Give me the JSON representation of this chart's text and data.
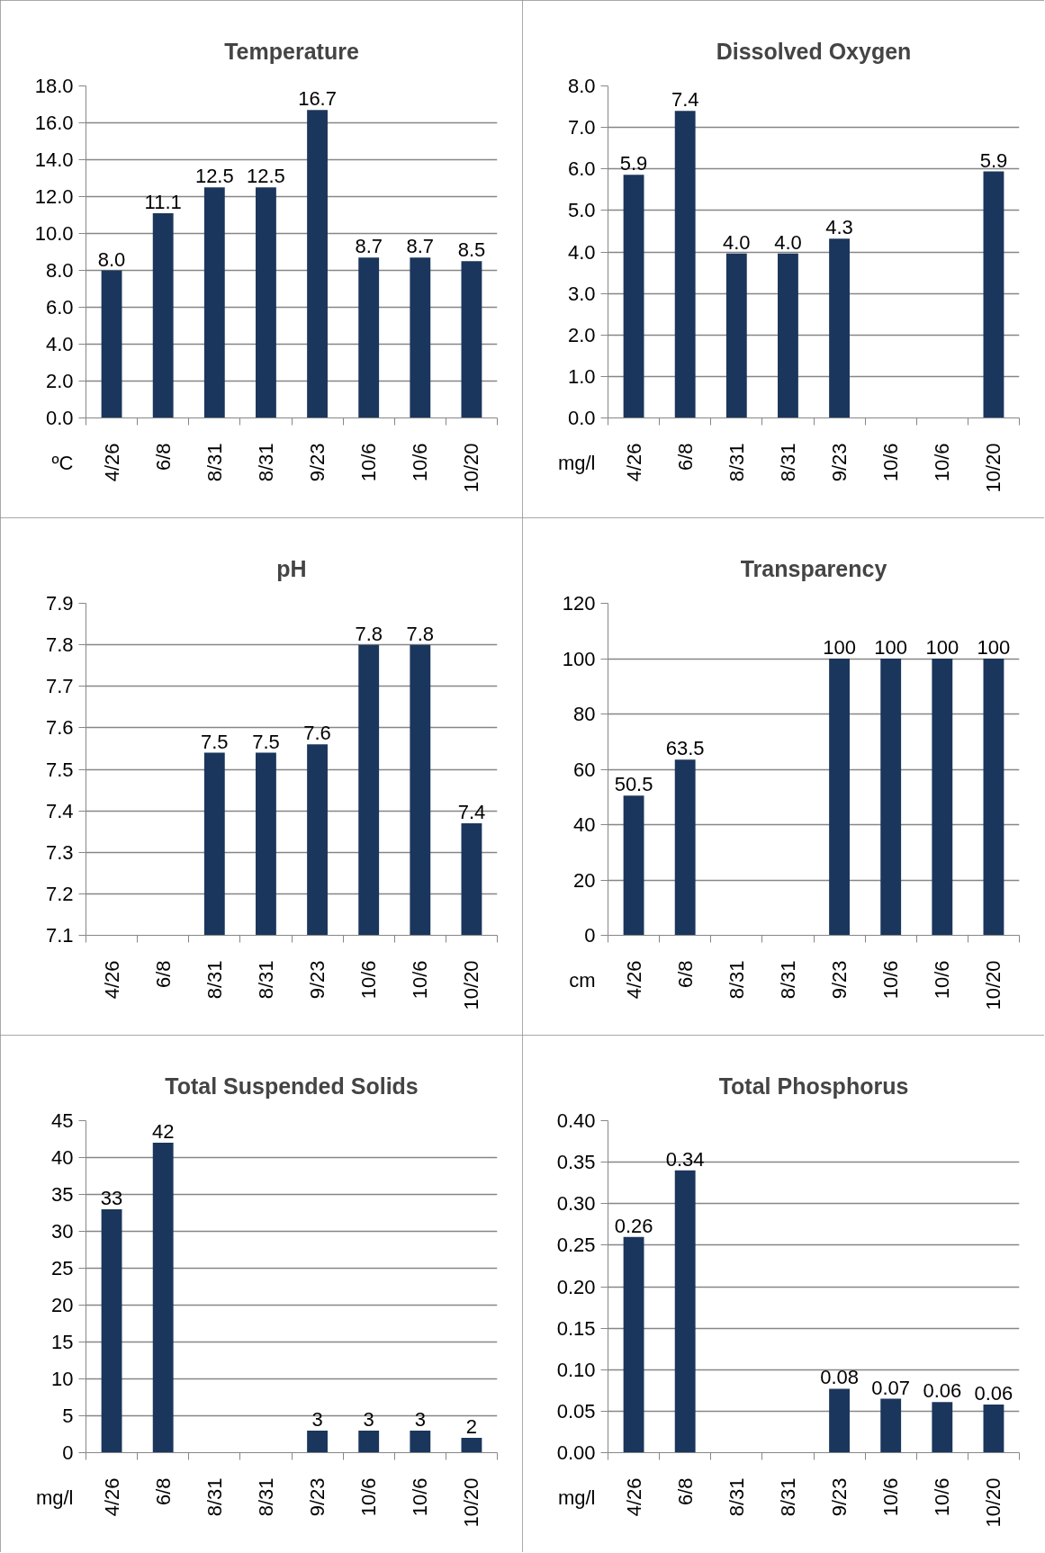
{
  "chart_data": [
    {
      "type": "bar",
      "title": "Temperature",
      "ylabel": "ºC",
      "categories": [
        "4/26",
        "6/8",
        "8/31",
        "8/31",
        "9/23",
        "10/6",
        "10/6",
        "10/20"
      ],
      "values": [
        8.0,
        11.1,
        12.5,
        12.5,
        16.7,
        8.7,
        8.7,
        8.5
      ],
      "value_labels": [
        "8.0",
        "11.1",
        "12.5",
        "12.5",
        "16.7",
        "8.7",
        "8.7",
        "8.5"
      ],
      "color": "#1b365d",
      "ylim": [
        0,
        18
      ],
      "yticks": [
        {
          "value": 0,
          "label": "0.0"
        },
        {
          "value": 2,
          "label": "2.0"
        },
        {
          "value": 4,
          "label": "4.0"
        },
        {
          "value": 6,
          "label": "6.0"
        },
        {
          "value": 8,
          "label": "8.0"
        },
        {
          "value": 10,
          "label": "10.0"
        },
        {
          "value": 12,
          "label": "12.0"
        },
        {
          "value": 14,
          "label": "14.0"
        },
        {
          "value": 16,
          "label": "16.0"
        },
        {
          "value": 18,
          "label": "18.0"
        }
      ],
      "grid": "y"
    },
    {
      "type": "bar",
      "title": "Dissolved Oxygen",
      "ylabel": "mg/l",
      "categories": [
        "4/26",
        "6/8",
        "8/31",
        "8/31",
        "9/23",
        "10/6",
        "10/6",
        "10/20"
      ],
      "values": [
        5.86,
        7.4,
        3.96,
        3.96,
        4.32,
        null,
        null,
        5.94
      ],
      "value_labels": [
        "5.9",
        "7.4",
        "4.0",
        "4.0",
        "4.3",
        null,
        null,
        "5.9"
      ],
      "color": "#1b365d",
      "ylim": [
        0,
        8
      ],
      "yticks": [
        {
          "value": 0,
          "label": "0.0"
        },
        {
          "value": 1,
          "label": "1.0"
        },
        {
          "value": 2,
          "label": "2.0"
        },
        {
          "value": 3,
          "label": "3.0"
        },
        {
          "value": 4,
          "label": "4.0"
        },
        {
          "value": 5,
          "label": "5.0"
        },
        {
          "value": 6,
          "label": "6.0"
        },
        {
          "value": 7,
          "label": "7.0"
        },
        {
          "value": 8,
          "label": "8.0"
        }
      ],
      "grid": "y"
    },
    {
      "type": "bar",
      "title": "pH",
      "categories": [
        "4/26",
        "6/8",
        "8/31",
        "8/31",
        "9/23",
        "10/6",
        "10/6",
        "10/20"
      ],
      "values": [
        null,
        null,
        7.54,
        7.54,
        7.56,
        7.8,
        7.8,
        7.37
      ],
      "value_labels": [
        null,
        null,
        "7.5",
        "7.5",
        "7.6",
        "7.8",
        "7.8",
        "7.4"
      ],
      "color": "#1b365d",
      "ylim": [
        7.1,
        7.9
      ],
      "yticks": [
        7.1,
        7.2,
        7.3,
        7.4,
        7.5,
        7.6,
        7.7,
        7.8,
        7.9
      ],
      "grid": "y"
    },
    {
      "type": "bar",
      "title": "Transparency",
      "ylabel": "cm",
      "categories": [
        "4/26",
        "6/8",
        "8/31",
        "8/31",
        "9/23",
        "10/6",
        "10/6",
        "10/20"
      ],
      "values": [
        50.5,
        63.5,
        null,
        null,
        100,
        100,
        100,
        100
      ],
      "value_labels": [
        "50.5",
        "63.5",
        null,
        null,
        "100",
        "100",
        "100",
        "100"
      ],
      "color": "#1b365d",
      "ylim": [
        0,
        120
      ],
      "yticks": [
        0,
        20,
        40,
        60,
        80,
        100,
        120
      ],
      "grid": "y"
    },
    {
      "type": "bar",
      "title": "Total Suspended Solids",
      "ylabel": "mg/l",
      "categories": [
        "4/26",
        "6/8",
        "8/31",
        "8/31",
        "9/23",
        "10/6",
        "10/6",
        "10/20"
      ],
      "values": [
        33,
        42,
        null,
        null,
        3,
        3,
        3,
        2
      ],
      "value_labels": [
        "33",
        "42",
        null,
        null,
        "3",
        "3",
        "3",
        "2"
      ],
      "color": "#1b365d",
      "ylim": [
        0,
        45
      ],
      "yticks": [
        0,
        5,
        10,
        15,
        20,
        25,
        30,
        35,
        40,
        45
      ],
      "grid": "y"
    },
    {
      "type": "bar",
      "title": "Total Phosphorus",
      "ylabel": "mg/l",
      "categories": [
        "4/26",
        "6/8",
        "8/31",
        "8/31",
        "9/23",
        "10/6",
        "10/6",
        "10/20"
      ],
      "values": [
        0.26,
        0.34,
        null,
        null,
        0.077,
        0.065,
        0.061,
        0.058
      ],
      "value_labels": [
        "0.26",
        "0.34",
        null,
        null,
        "0.08",
        "0.07",
        "0.06",
        "0.06"
      ],
      "color": "#1b365d",
      "ylim": [
        0,
        0.4
      ],
      "yticks": [
        {
          "value": 0,
          "label": "0.00"
        },
        {
          "value": 0.05,
          "label": "0.05"
        },
        {
          "value": 0.1,
          "label": "0.10"
        },
        {
          "value": 0.15,
          "label": "0.15"
        },
        {
          "value": 0.2,
          "label": "0.20"
        },
        {
          "value": 0.25,
          "label": "0.25"
        },
        {
          "value": 0.3,
          "label": "0.30"
        },
        {
          "value": 0.35,
          "label": "0.35"
        },
        {
          "value": 0.4,
          "label": "0.40"
        }
      ],
      "grid": "y"
    }
  ]
}
